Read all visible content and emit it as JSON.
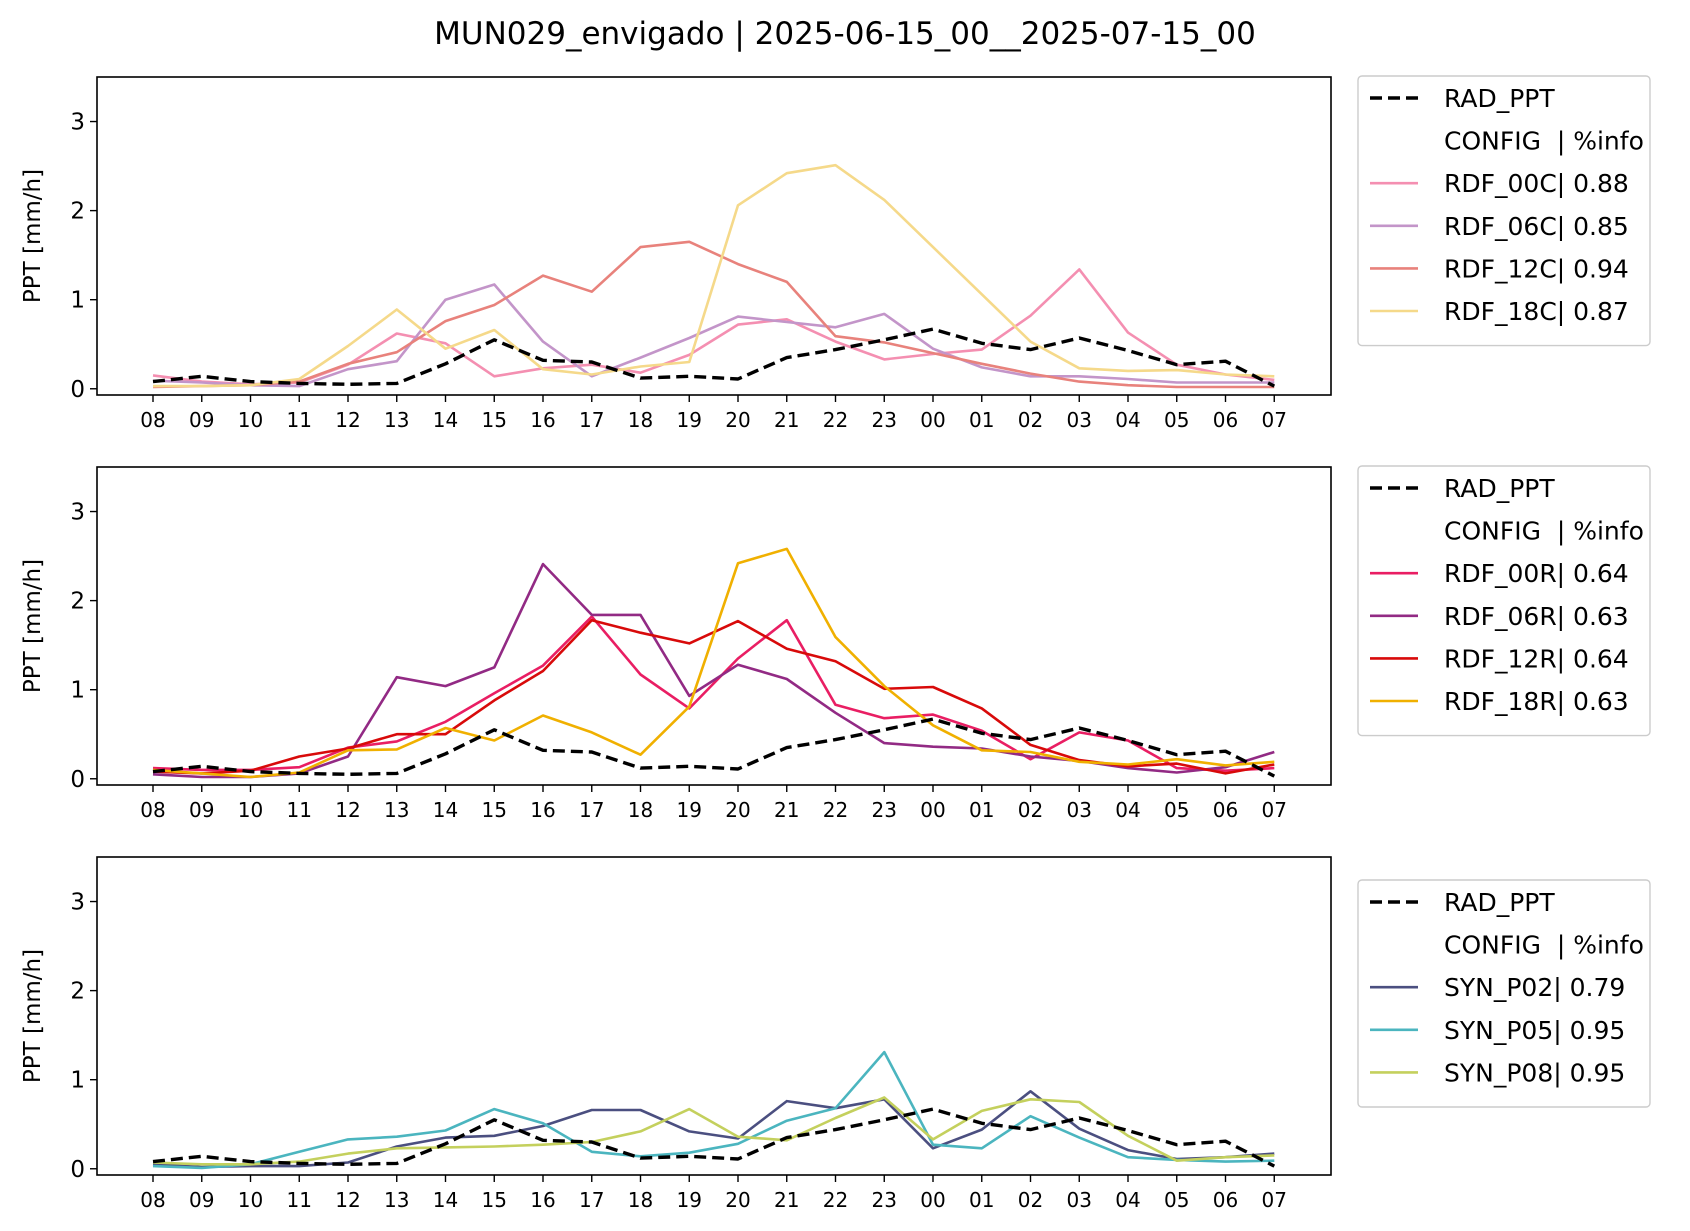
{
  "title": "MUN029_envigado | 2025-06-15_00__2025-07-15_00",
  "colors": {
    "rad": "#000000",
    "RDF_00C": "#f48fb1",
    "RDF_06C": "#c395c9",
    "RDF_12C": "#e8827c",
    "RDF_18C": "#f5d98a",
    "RDF_00R": "#e91e63",
    "RDF_06R": "#922a84",
    "RDF_12R": "#d80a0a",
    "RDF_18R": "#f0b000",
    "SYN_P02": "#4b4f80",
    "SYN_P05": "#4bb5bf",
    "SYN_P08": "#c4d05d"
  },
  "chart_data": [
    {
      "type": "line",
      "title": "",
      "ylabel": "PPT [mm/h]",
      "xlabel": "",
      "categories": [
        "08",
        "09",
        "10",
        "11",
        "12",
        "13",
        "14",
        "15",
        "16",
        "17",
        "18",
        "19",
        "20",
        "21",
        "22",
        "23",
        "00",
        "01",
        "02",
        "03",
        "04",
        "05",
        "06",
        "07"
      ],
      "ylim": [
        -0.07,
        3.5
      ],
      "yticks": [
        0,
        1,
        2,
        3
      ],
      "grid": false,
      "legend_placement": "outside-right",
      "legend_header": "CONFIG  | %info",
      "series": [
        {
          "name": "RAD_PPT",
          "style": "dashed",
          "color_key": "rad",
          "values": [
            0.08,
            0.14,
            0.08,
            0.06,
            0.05,
            0.06,
            0.28,
            0.55,
            0.32,
            0.3,
            0.12,
            0.14,
            0.11,
            0.35,
            0.44,
            0.55,
            0.67,
            0.51,
            0.44,
            0.57,
            0.43,
            0.27,
            0.31,
            0.03
          ]
        },
        {
          "name": "RDF_00C| 0.88",
          "style": "solid",
          "color_key": "RDF_00C",
          "values": [
            0.15,
            0.08,
            0.05,
            0.07,
            0.27,
            0.62,
            0.51,
            0.14,
            0.23,
            0.27,
            0.18,
            0.38,
            0.72,
            0.78,
            0.53,
            0.33,
            0.39,
            0.44,
            0.82,
            1.34,
            0.63,
            0.27,
            0.16,
            0.1
          ]
        },
        {
          "name": "RDF_06C| 0.85",
          "style": "solid",
          "color_key": "RDF_06C",
          "values": [
            0.09,
            0.07,
            0.04,
            0.03,
            0.22,
            0.31,
            1.0,
            1.17,
            0.53,
            0.14,
            0.35,
            0.57,
            0.81,
            0.75,
            0.69,
            0.84,
            0.45,
            0.24,
            0.14,
            0.14,
            0.11,
            0.07,
            0.07,
            0.07
          ]
        },
        {
          "name": "RDF_12C| 0.94",
          "style": "solid",
          "color_key": "RDF_12C",
          "values": [
            0.02,
            0.03,
            0.04,
            0.08,
            0.28,
            0.41,
            0.76,
            0.94,
            1.27,
            1.09,
            1.59,
            1.65,
            1.4,
            1.2,
            0.59,
            0.52,
            0.4,
            0.28,
            0.17,
            0.08,
            0.04,
            0.02,
            0.02,
            0.02
          ]
        },
        {
          "name": "RDF_18C| 0.87",
          "style": "solid",
          "color_key": "RDF_18C",
          "values": [
            0.03,
            0.03,
            0.04,
            0.11,
            0.48,
            0.89,
            0.45,
            0.66,
            0.22,
            0.16,
            0.25,
            0.3,
            2.06,
            2.42,
            2.51,
            2.12,
            1.59,
            1.06,
            0.53,
            0.23,
            0.2,
            0.21,
            0.16,
            0.14
          ]
        }
      ]
    },
    {
      "type": "line",
      "title": "",
      "ylabel": "PPT [mm/h]",
      "xlabel": "",
      "categories": [
        "08",
        "09",
        "10",
        "11",
        "12",
        "13",
        "14",
        "15",
        "16",
        "17",
        "18",
        "19",
        "20",
        "21",
        "22",
        "23",
        "00",
        "01",
        "02",
        "03",
        "04",
        "05",
        "06",
        "07"
      ],
      "ylim": [
        -0.07,
        3.5
      ],
      "yticks": [
        0,
        1,
        2,
        3
      ],
      "grid": false,
      "legend_placement": "outside-right",
      "legend_header": "CONFIG  | %info",
      "series": [
        {
          "name": "RAD_PPT",
          "style": "dashed",
          "color_key": "rad",
          "values": [
            0.08,
            0.14,
            0.08,
            0.06,
            0.05,
            0.06,
            0.28,
            0.55,
            0.32,
            0.3,
            0.12,
            0.14,
            0.11,
            0.35,
            0.44,
            0.55,
            0.67,
            0.51,
            0.44,
            0.57,
            0.43,
            0.27,
            0.31,
            0.03
          ]
        },
        {
          "name": "RDF_00R| 0.64",
          "style": "solid",
          "color_key": "RDF_00R",
          "values": [
            0.12,
            0.1,
            0.1,
            0.13,
            0.35,
            0.42,
            0.64,
            0.96,
            1.27,
            1.82,
            1.17,
            0.79,
            1.35,
            1.78,
            0.83,
            0.68,
            0.72,
            0.54,
            0.22,
            0.52,
            0.43,
            0.12,
            0.09,
            0.12
          ]
        },
        {
          "name": "RDF_06R| 0.63",
          "style": "solid",
          "color_key": "RDF_06R",
          "values": [
            0.05,
            0.02,
            0.02,
            0.06,
            0.25,
            1.14,
            1.04,
            1.25,
            2.41,
            1.84,
            1.84,
            0.93,
            1.28,
            1.12,
            0.74,
            0.4,
            0.36,
            0.34,
            0.25,
            0.2,
            0.12,
            0.07,
            0.13,
            0.3
          ]
        },
        {
          "name": "RDF_12R| 0.64",
          "style": "solid",
          "color_key": "RDF_12R",
          "values": [
            0.08,
            0.06,
            0.09,
            0.25,
            0.34,
            0.5,
            0.5,
            0.88,
            1.21,
            1.78,
            1.64,
            1.52,
            1.77,
            1.46,
            1.32,
            1.01,
            1.03,
            0.79,
            0.38,
            0.21,
            0.14,
            0.17,
            0.06,
            0.16
          ]
        },
        {
          "name": "RDF_18R| 0.63",
          "style": "solid",
          "color_key": "RDF_18R",
          "values": [
            0.1,
            0.06,
            0.02,
            0.07,
            0.32,
            0.33,
            0.57,
            0.43,
            0.71,
            0.52,
            0.27,
            0.81,
            2.42,
            2.58,
            1.59,
            1.04,
            0.6,
            0.32,
            0.3,
            0.19,
            0.16,
            0.22,
            0.15,
            0.19
          ]
        }
      ]
    },
    {
      "type": "line",
      "title": "",
      "ylabel": "PPT [mm/h]",
      "xlabel": "",
      "categories": [
        "08",
        "09",
        "10",
        "11",
        "12",
        "13",
        "14",
        "15",
        "16",
        "17",
        "18",
        "19",
        "20",
        "21",
        "22",
        "23",
        "00",
        "01",
        "02",
        "03",
        "04",
        "05",
        "06",
        "07"
      ],
      "ylim": [
        -0.07,
        3.5
      ],
      "yticks": [
        0,
        1,
        2,
        3
      ],
      "grid": false,
      "legend_placement": "outside-right",
      "legend_header": "CONFIG  | %info",
      "series": [
        {
          "name": "RAD_PPT",
          "style": "dashed",
          "color_key": "rad",
          "values": [
            0.08,
            0.14,
            0.08,
            0.06,
            0.05,
            0.06,
            0.28,
            0.55,
            0.32,
            0.3,
            0.12,
            0.14,
            0.11,
            0.35,
            0.44,
            0.55,
            0.67,
            0.51,
            0.44,
            0.57,
            0.43,
            0.27,
            0.31,
            0.03
          ]
        },
        {
          "name": "SYN_P02| 0.79",
          "style": "solid",
          "color_key": "SYN_P02",
          "values": [
            0.05,
            0.02,
            0.03,
            0.03,
            0.07,
            0.25,
            0.35,
            0.37,
            0.48,
            0.66,
            0.66,
            0.42,
            0.34,
            0.76,
            0.68,
            0.78,
            0.23,
            0.44,
            0.87,
            0.45,
            0.21,
            0.11,
            0.13,
            0.17
          ]
        },
        {
          "name": "SYN_P05| 0.95",
          "style": "solid",
          "color_key": "SYN_P05",
          "values": [
            0.03,
            0.01,
            0.05,
            0.19,
            0.33,
            0.36,
            0.43,
            0.67,
            0.51,
            0.19,
            0.14,
            0.18,
            0.28,
            0.54,
            0.68,
            1.31,
            0.27,
            0.23,
            0.59,
            0.35,
            0.13,
            0.1,
            0.08,
            0.09
          ]
        },
        {
          "name": "SYN_P08| 0.95",
          "style": "solid",
          "color_key": "SYN_P08",
          "values": [
            0.07,
            0.05,
            0.05,
            0.08,
            0.17,
            0.23,
            0.24,
            0.25,
            0.27,
            0.3,
            0.42,
            0.67,
            0.36,
            0.32,
            0.57,
            0.8,
            0.33,
            0.65,
            0.78,
            0.75,
            0.37,
            0.09,
            0.13,
            0.15
          ]
        }
      ]
    }
  ]
}
